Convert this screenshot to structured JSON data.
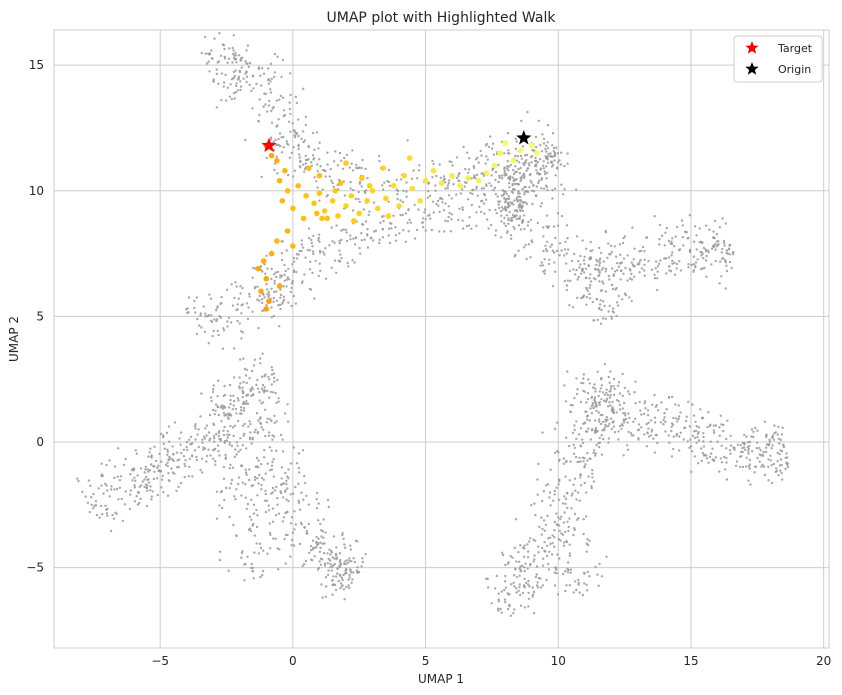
{
  "chart_data": {
    "type": "scatter",
    "title": "UMAP plot with Highlighted Walk",
    "xlabel": "UMAP 1",
    "ylabel": "UMAP 2",
    "xlim": [
      -9.0,
      20.2
    ],
    "ylim": [
      -8.2,
      16.4
    ],
    "xticks": [
      -5,
      0,
      5,
      10,
      15,
      20
    ],
    "yticks": [
      -5,
      0,
      5,
      10,
      15
    ],
    "xtick_labels": [
      "−5",
      "0",
      "5",
      "10",
      "15",
      "20"
    ],
    "ytick_labels": [
      "−5",
      "0",
      "5",
      "10",
      "15"
    ],
    "grid": true,
    "legend_position": "top-right",
    "background_clusters": [
      {
        "path": [
          [
            -3.2,
            14.6
          ],
          [
            -1.6,
            15.1
          ],
          [
            -0.4,
            12.8
          ],
          [
            0.3,
            10.8
          ],
          [
            3.5,
            10.2
          ],
          [
            7.0,
            10.6
          ],
          [
            8.5,
            11.2
          ],
          [
            9.8,
            11.6
          ],
          [
            8.8,
            9.5
          ],
          [
            8.0,
            9.7
          ],
          [
            4.5,
            9.0
          ],
          [
            1.5,
            8.0
          ],
          [
            -0.2,
            6.5
          ],
          [
            -1.5,
            5.5
          ],
          [
            -3.8,
            4.6
          ]
        ],
        "count": 1100
      },
      {
        "path": [
          [
            7.8,
            9.8
          ],
          [
            9.2,
            8.0
          ],
          [
            10.8,
            7.0
          ],
          [
            11.5,
            6.5
          ],
          [
            12.3,
            5.0
          ]
        ],
        "count": 220
      },
      {
        "path": [
          [
            11.5,
            7.0
          ],
          [
            13.5,
            7.5
          ],
          [
            15.5,
            7.6
          ],
          [
            16.5,
            7.8
          ]
        ],
        "count": 220
      },
      {
        "path": [
          [
            -1.2,
            -5.5
          ],
          [
            -2.0,
            -2.0
          ],
          [
            -2.6,
            1.0
          ],
          [
            -2.0,
            2.0
          ],
          [
            -0.6,
            2.5
          ]
        ],
        "count": 260
      },
      {
        "path": [
          [
            -7.6,
            -2.6
          ],
          [
            -6.5,
            -1.8
          ],
          [
            -5.2,
            -1.0
          ],
          [
            -3.8,
            -0.2
          ],
          [
            -2.5,
            0.5
          ]
        ],
        "count": 260
      },
      {
        "path": [
          [
            -1.5,
            1.0
          ],
          [
            -0.5,
            -1.5
          ],
          [
            0.5,
            -3.5
          ],
          [
            1.5,
            -5.0
          ],
          [
            2.3,
            -5.5
          ]
        ],
        "count": 300
      },
      {
        "path": [
          [
            7.6,
            -6.6
          ],
          [
            9.0,
            -5.0
          ],
          [
            10.0,
            -3.0
          ],
          [
            10.8,
            -1.0
          ],
          [
            11.3,
            1.0
          ],
          [
            11.8,
            2.8
          ]
        ],
        "count": 380
      },
      {
        "path": [
          [
            11.0,
            1.5
          ],
          [
            13.0,
            1.0
          ],
          [
            15.0,
            0.3
          ],
          [
            17.0,
            -0.5
          ],
          [
            18.6,
            -0.5
          ]
        ],
        "count": 380
      },
      {
        "path": [
          [
            10.2,
            -4.5
          ],
          [
            11.2,
            -5.8
          ]
        ],
        "count": 40
      }
    ],
    "walk_points": [
      [
        -1.0,
        11.8,
        0.15
      ],
      [
        -0.8,
        11.4,
        0.2
      ],
      [
        -0.6,
        11.2,
        0.25
      ],
      [
        -0.3,
        10.8,
        0.3
      ],
      [
        -0.5,
        10.4,
        0.3
      ],
      [
        -0.2,
        10.0,
        0.35
      ],
      [
        0.2,
        10.2,
        0.35
      ],
      [
        0.5,
        9.8,
        0.4
      ],
      [
        0.8,
        9.5,
        0.4
      ],
      [
        1.0,
        9.9,
        0.4
      ],
      [
        1.2,
        9.2,
        0.45
      ],
      [
        1.5,
        9.6,
        0.45
      ],
      [
        1.7,
        9.0,
        0.45
      ],
      [
        2.0,
        9.4,
        0.5
      ],
      [
        2.2,
        9.8,
        0.5
      ],
      [
        2.5,
        9.1,
        0.5
      ],
      [
        2.8,
        9.6,
        0.5
      ],
      [
        3.0,
        10.0,
        0.55
      ],
      [
        3.2,
        9.3,
        0.55
      ],
      [
        3.5,
        9.7,
        0.55
      ],
      [
        3.8,
        10.2,
        0.6
      ],
      [
        4.0,
        9.4,
        0.6
      ],
      [
        4.2,
        10.6,
        0.6
      ],
      [
        4.5,
        10.1,
        0.65
      ],
      [
        4.8,
        9.6,
        0.65
      ],
      [
        5.0,
        10.4,
        0.7
      ],
      [
        5.3,
        10.8,
        0.7
      ],
      [
        5.6,
        10.3,
        0.75
      ],
      [
        6.0,
        10.6,
        0.75
      ],
      [
        6.3,
        10.2,
        0.8
      ],
      [
        6.6,
        10.5,
        0.8
      ],
      [
        7.0,
        10.4,
        0.85
      ],
      [
        7.3,
        10.7,
        0.85
      ],
      [
        7.6,
        11.0,
        0.9
      ],
      [
        7.8,
        11.5,
        0.9
      ],
      [
        8.0,
        11.9,
        0.95
      ],
      [
        8.3,
        11.2,
        0.95
      ],
      [
        8.6,
        11.6,
        1.0
      ],
      [
        9.0,
        11.8,
        1.0
      ],
      [
        9.2,
        11.5,
        1.0
      ],
      [
        1.0,
        10.6,
        0.35
      ],
      [
        0.6,
        10.9,
        0.35
      ],
      [
        1.8,
        10.3,
        0.4
      ],
      [
        2.6,
        10.5,
        0.45
      ],
      [
        3.4,
        10.9,
        0.5
      ],
      [
        4.4,
        11.3,
        0.6
      ],
      [
        2.0,
        11.1,
        0.45
      ],
      [
        1.3,
        8.9,
        0.4
      ],
      [
        0.9,
        9.1,
        0.35
      ],
      [
        2.3,
        8.8,
        0.45
      ],
      [
        -0.6,
        8.0,
        0.3
      ],
      [
        -0.8,
        7.5,
        0.25
      ],
      [
        -1.1,
        7.2,
        0.25
      ],
      [
        -1.3,
        6.9,
        0.2
      ],
      [
        -1.0,
        6.5,
        0.2
      ],
      [
        -1.2,
        6.0,
        0.2
      ],
      [
        -0.9,
        5.6,
        0.15
      ],
      [
        -1.0,
        5.3,
        0.15
      ],
      [
        -0.5,
        6.2,
        0.2
      ],
      [
        0.0,
        7.8,
        0.3
      ],
      [
        -0.2,
        8.4,
        0.3
      ],
      [
        0.4,
        8.9,
        0.35
      ],
      [
        0.0,
        9.3,
        0.35
      ],
      [
        -0.4,
        9.6,
        0.3
      ],
      [
        1.6,
        10.0,
        0.4
      ],
      [
        2.9,
        10.2,
        0.5
      ],
      [
        3.6,
        9.0,
        0.55
      ],
      [
        1.1,
        8.9,
        0.4
      ]
    ],
    "series": [
      {
        "name": "Target",
        "x": -0.9,
        "y": 11.8,
        "color": "#ff0000",
        "marker": "star"
      },
      {
        "name": "Origin",
        "x": 8.7,
        "y": 12.1,
        "color": "#000000",
        "marker": "star"
      }
    ],
    "background_color": "#999999",
    "walk_colormap": [
      "#ff8c00",
      "#ffd21a",
      "#f5ff66"
    ]
  }
}
